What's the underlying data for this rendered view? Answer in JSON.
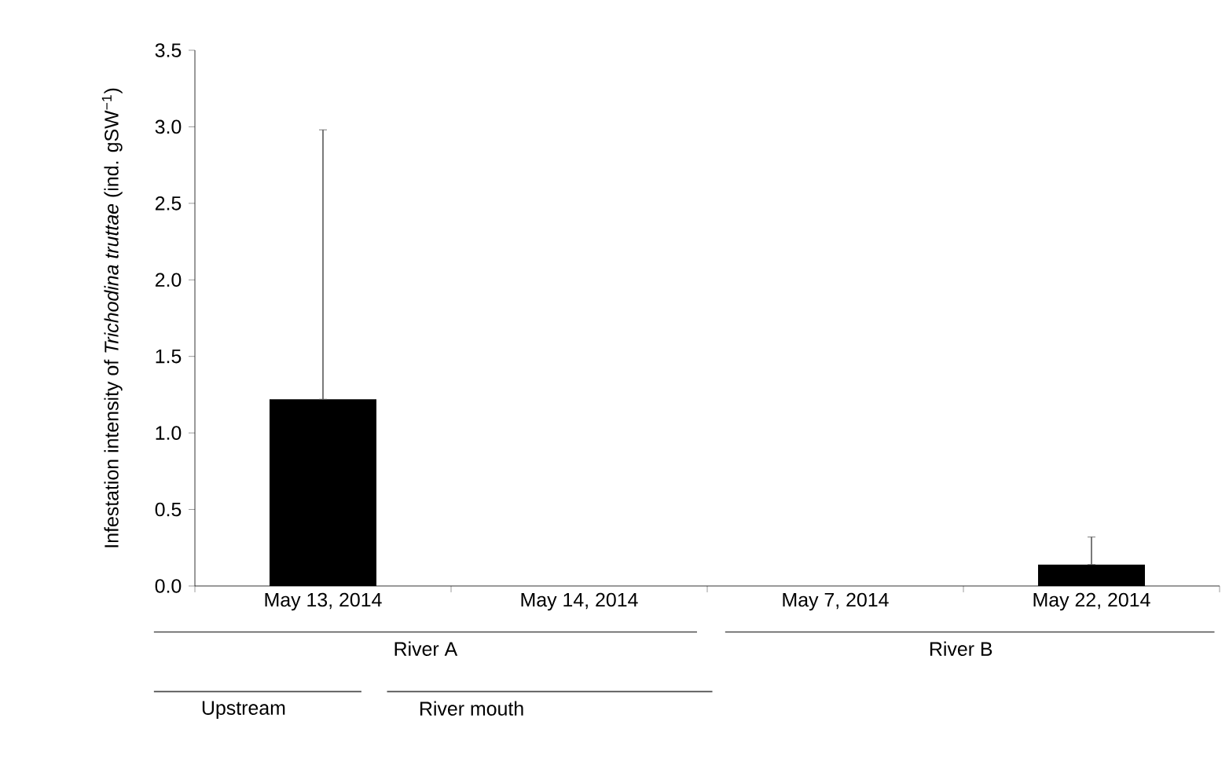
{
  "chart_data": {
    "type": "bar",
    "ylabel": "Infestation intensity of *Trichodina truttae* (ind. gSW$^{−1}$)",
    "categories": [
      "May 13, 2014",
      "May 14, 2014",
      "May 7, 2014",
      "May 22, 2014"
    ],
    "values": [
      1.22,
      0,
      0,
      0.14
    ],
    "errors": [
      [
        1.22,
        2.98
      ],
      null,
      null,
      [
        0.14,
        0.32
      ]
    ],
    "color": "#000000",
    "ylim": [
      0,
      3.5
    ],
    "yticks": [
      {
        "value": 0,
        "label": "0.0"
      },
      {
        "value": 0.5,
        "label": "0.5"
      },
      {
        "value": 1,
        "label": "1.0"
      },
      {
        "value": 1.5,
        "label": "1.5"
      },
      {
        "value": 2,
        "label": "2.0"
      },
      {
        "value": 2.5,
        "label": "2.5"
      },
      {
        "value": 3,
        "label": "3.0"
      },
      {
        "value": 3.5,
        "label": "3.5"
      }
    ],
    "annotations": [
      "River A",
      "River B",
      "Upstream",
      "River mouth"
    ],
    "grid": false
  }
}
